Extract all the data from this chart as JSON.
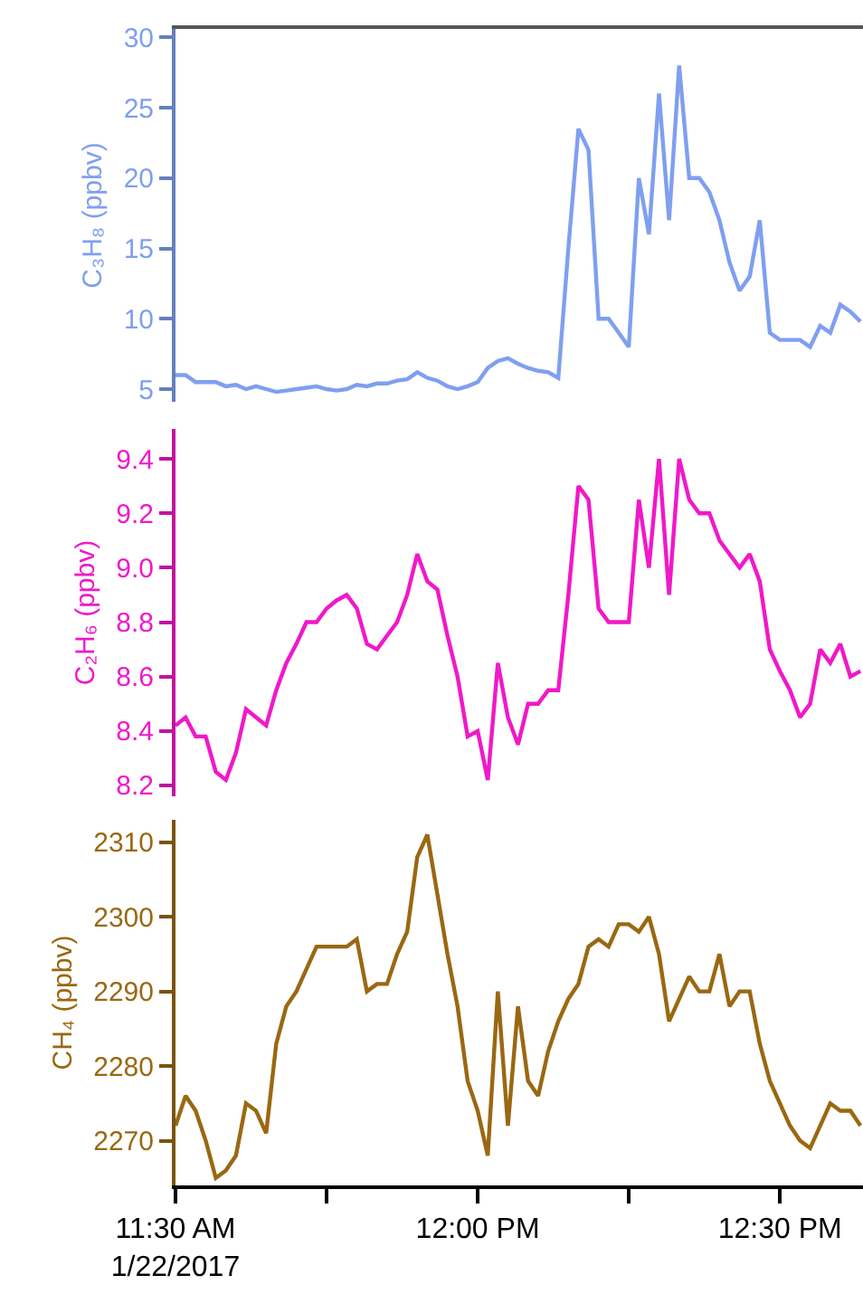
{
  "chart_data": [
    {
      "type": "line",
      "ylabel": "C₃H₈ (ppbv)",
      "xlim": [
        "2017-01-22T11:30",
        "2017-01-22T12:38:15"
      ],
      "ylim": [
        4.1,
        30.6
      ],
      "yticks": [
        5,
        10,
        15,
        20,
        25,
        30
      ],
      "tick_labels": "y",
      "x": [
        "2017-01-22T11:30",
        "2017-01-22T11:31",
        "2017-01-22T11:32",
        "2017-01-22T11:33",
        "2017-01-22T11:34",
        "2017-01-22T11:35",
        "2017-01-22T11:36",
        "2017-01-22T11:37",
        "2017-01-22T11:38",
        "2017-01-22T11:39",
        "2017-01-22T11:40",
        "2017-01-22T11:41",
        "2017-01-22T11:42",
        "2017-01-22T11:43",
        "2017-01-22T11:44",
        "2017-01-22T11:45",
        "2017-01-22T11:46",
        "2017-01-22T11:47",
        "2017-01-22T11:48",
        "2017-01-22T11:49",
        "2017-01-22T11:50",
        "2017-01-22T11:51",
        "2017-01-22T11:52",
        "2017-01-22T11:53",
        "2017-01-22T11:54",
        "2017-01-22T11:55",
        "2017-01-22T11:56",
        "2017-01-22T11:57",
        "2017-01-22T11:58",
        "2017-01-22T11:59",
        "2017-01-22T12:00",
        "2017-01-22T12:01",
        "2017-01-22T12:02",
        "2017-01-22T12:03",
        "2017-01-22T12:04",
        "2017-01-22T12:05",
        "2017-01-22T12:06",
        "2017-01-22T12:07",
        "2017-01-22T12:08",
        "2017-01-22T12:09",
        "2017-01-22T12:10",
        "2017-01-22T12:11",
        "2017-01-22T12:12",
        "2017-01-22T12:13",
        "2017-01-22T12:14",
        "2017-01-22T12:15",
        "2017-01-22T12:16",
        "2017-01-22T12:17",
        "2017-01-22T12:18",
        "2017-01-22T12:19",
        "2017-01-22T12:20",
        "2017-01-22T12:21",
        "2017-01-22T12:22",
        "2017-01-22T12:23",
        "2017-01-22T12:24",
        "2017-01-22T12:25",
        "2017-01-22T12:26",
        "2017-01-22T12:27",
        "2017-01-22T12:28",
        "2017-01-22T12:29",
        "2017-01-22T12:30",
        "2017-01-22T12:31",
        "2017-01-22T12:32",
        "2017-01-22T12:33",
        "2017-01-22T12:34",
        "2017-01-22T12:35",
        "2017-01-22T12:36",
        "2017-01-22T12:37",
        "2017-01-22T12:38"
      ],
      "series": [
        {
          "color": "#7f9ff0",
          "values": [
            6,
            6,
            5.5,
            5.5,
            5.5,
            5.2,
            5.3,
            5.0,
            5.2,
            5.0,
            4.8,
            4.9,
            5.0,
            5.1,
            5.2,
            5.0,
            4.9,
            5.0,
            5.3,
            5.2,
            5.4,
            5.4,
            5.6,
            5.7,
            6.2,
            5.8,
            5.6,
            5.2,
            5.0,
            5.2,
            5.5,
            6.5,
            7.0,
            7.2,
            6.8,
            6.5,
            6.3,
            6.2,
            5.8,
            15,
            23.5,
            22,
            10,
            10,
            9,
            8,
            20,
            16,
            26,
            17,
            28,
            20,
            20,
            19,
            17,
            14,
            12,
            13,
            17,
            9,
            8.5,
            8.5,
            8.5,
            8,
            9.5,
            9,
            11,
            10.5,
            9.8
          ]
        }
      ]
    },
    {
      "type": "line",
      "ylabel": "C₂H₆ (ppbv)",
      "xlim": [
        "2017-01-22T11:30",
        "2017-01-22T12:38:15"
      ],
      "ylim": [
        8.16,
        9.51
      ],
      "yticks": [
        8.2,
        8.4,
        8.6,
        8.8,
        {
          "value": 9,
          "label": "9.0"
        },
        9.2,
        9.4
      ],
      "tick_labels": "y",
      "x": [
        "2017-01-22T11:30",
        "2017-01-22T11:31",
        "2017-01-22T11:32",
        "2017-01-22T11:33",
        "2017-01-22T11:34",
        "2017-01-22T11:35",
        "2017-01-22T11:36",
        "2017-01-22T11:37",
        "2017-01-22T11:38",
        "2017-01-22T11:39",
        "2017-01-22T11:40",
        "2017-01-22T11:41",
        "2017-01-22T11:42",
        "2017-01-22T11:43",
        "2017-01-22T11:44",
        "2017-01-22T11:45",
        "2017-01-22T11:46",
        "2017-01-22T11:47",
        "2017-01-22T11:48",
        "2017-01-22T11:49",
        "2017-01-22T11:50",
        "2017-01-22T11:51",
        "2017-01-22T11:52",
        "2017-01-22T11:53",
        "2017-01-22T11:54",
        "2017-01-22T11:55",
        "2017-01-22T11:56",
        "2017-01-22T11:57",
        "2017-01-22T11:58",
        "2017-01-22T11:59",
        "2017-01-22T12:00",
        "2017-01-22T12:01",
        "2017-01-22T12:02",
        "2017-01-22T12:03",
        "2017-01-22T12:04",
        "2017-01-22T12:05",
        "2017-01-22T12:06",
        "2017-01-22T12:07",
        "2017-01-22T12:08",
        "2017-01-22T12:09",
        "2017-01-22T12:10",
        "2017-01-22T12:11",
        "2017-01-22T12:12",
        "2017-01-22T12:13",
        "2017-01-22T12:14",
        "2017-01-22T12:15",
        "2017-01-22T12:16",
        "2017-01-22T12:17",
        "2017-01-22T12:18",
        "2017-01-22T12:19",
        "2017-01-22T12:20",
        "2017-01-22T12:21",
        "2017-01-22T12:22",
        "2017-01-22T12:23",
        "2017-01-22T12:24",
        "2017-01-22T12:25",
        "2017-01-22T12:26",
        "2017-01-22T12:27",
        "2017-01-22T12:28",
        "2017-01-22T12:29",
        "2017-01-22T12:30",
        "2017-01-22T12:31",
        "2017-01-22T12:32",
        "2017-01-22T12:33",
        "2017-01-22T12:34",
        "2017-01-22T12:35",
        "2017-01-22T12:36",
        "2017-01-22T12:37",
        "2017-01-22T12:38"
      ],
      "series": [
        {
          "color": "#f019c8",
          "values": [
            8.42,
            8.45,
            8.38,
            8.38,
            8.25,
            8.22,
            8.32,
            8.48,
            8.45,
            8.42,
            8.55,
            8.65,
            8.72,
            8.8,
            8.8,
            8.85,
            8.88,
            8.9,
            8.85,
            8.72,
            8.7,
            8.75,
            8.8,
            8.9,
            9.05,
            8.95,
            8.92,
            8.75,
            8.6,
            8.38,
            8.4,
            8.22,
            8.65,
            8.45,
            8.35,
            8.5,
            8.5,
            8.55,
            8.55,
            8.9,
            9.3,
            9.25,
            8.85,
            8.8,
            8.8,
            8.8,
            9.25,
            9.0,
            9.4,
            8.9,
            9.4,
            9.25,
            9.2,
            9.2,
            9.1,
            9.05,
            9.0,
            9.05,
            8.95,
            8.7,
            8.62,
            8.55,
            8.45,
            8.5,
            8.7,
            8.65,
            8.72,
            8.6,
            8.62
          ]
        }
      ]
    },
    {
      "type": "line",
      "ylabel": "CH₄ (ppbv)",
      "xlim": [
        "2017-01-22T11:30",
        "2017-01-22T12:38:15"
      ],
      "ylim": [
        2264,
        2313
      ],
      "yticks": [
        2270,
        2280,
        2290,
        2300,
        2310
      ],
      "xticks": [
        {
          "value": "2017-01-22T11:30",
          "label": "11:30 AM\n1/22/2017"
        },
        {
          "value": "2017-01-22T11:45",
          "label": null
        },
        {
          "value": "2017-01-22T12:00",
          "label": "12:00 PM"
        },
        {
          "value": "2017-01-22T12:15",
          "label": null
        },
        {
          "value": "2017-01-22T12:30",
          "label": "12:30 PM"
        }
      ],
      "x": [
        "2017-01-22T11:30",
        "2017-01-22T11:31",
        "2017-01-22T11:32",
        "2017-01-22T11:33",
        "2017-01-22T11:34",
        "2017-01-22T11:35",
        "2017-01-22T11:36",
        "2017-01-22T11:37",
        "2017-01-22T11:38",
        "2017-01-22T11:39",
        "2017-01-22T11:40",
        "2017-01-22T11:41",
        "2017-01-22T11:42",
        "2017-01-22T11:43",
        "2017-01-22T11:44",
        "2017-01-22T11:45",
        "2017-01-22T11:46",
        "2017-01-22T11:47",
        "2017-01-22T11:48",
        "2017-01-22T11:49",
        "2017-01-22T11:50",
        "2017-01-22T11:51",
        "2017-01-22T11:52",
        "2017-01-22T11:53",
        "2017-01-22T11:54",
        "2017-01-22T11:55",
        "2017-01-22T11:56",
        "2017-01-22T11:57",
        "2017-01-22T11:58",
        "2017-01-22T11:59",
        "2017-01-22T12:00",
        "2017-01-22T12:01",
        "2017-01-22T12:02",
        "2017-01-22T12:03",
        "2017-01-22T12:04",
        "2017-01-22T12:05",
        "2017-01-22T12:06",
        "2017-01-22T12:07",
        "2017-01-22T12:08",
        "2017-01-22T12:09",
        "2017-01-22T12:10",
        "2017-01-22T12:11",
        "2017-01-22T12:12",
        "2017-01-22T12:13",
        "2017-01-22T12:14",
        "2017-01-22T12:15",
        "2017-01-22T12:16",
        "2017-01-22T12:17",
        "2017-01-22T12:18",
        "2017-01-22T12:19",
        "2017-01-22T12:20",
        "2017-01-22T12:21",
        "2017-01-22T12:22",
        "2017-01-22T12:23",
        "2017-01-22T12:24",
        "2017-01-22T12:25",
        "2017-01-22T12:26",
        "2017-01-22T12:27",
        "2017-01-22T12:28",
        "2017-01-22T12:29",
        "2017-01-22T12:30",
        "2017-01-22T12:31",
        "2017-01-22T12:32",
        "2017-01-22T12:33",
        "2017-01-22T12:34",
        "2017-01-22T12:35",
        "2017-01-22T12:36",
        "2017-01-22T12:37",
        "2017-01-22T12:38"
      ],
      "series": [
        {
          "color": "#9a6812",
          "values": [
            2272,
            2276,
            2274,
            2270,
            2265,
            2266,
            2268,
            2275,
            2274,
            2271,
            2283,
            2288,
            2290,
            2293,
            2296,
            2296,
            2296,
            2296,
            2297,
            2290,
            2291,
            2291,
            2295,
            2298,
            2308,
            2311,
            2303,
            2295,
            2288,
            2278,
            2274,
            2268,
            2290,
            2272,
            2288,
            2278,
            2276,
            2282,
            2286,
            2289,
            2291,
            2296,
            2297,
            2296,
            2299,
            2299,
            2298,
            2300,
            2295,
            2286,
            2289,
            2292,
            2290,
            2290,
            2295,
            2288,
            2290,
            2290,
            2283,
            2278,
            2275,
            2272,
            2270,
            2269,
            2272,
            2275,
            2274,
            2274,
            2272
          ]
        }
      ]
    }
  ]
}
